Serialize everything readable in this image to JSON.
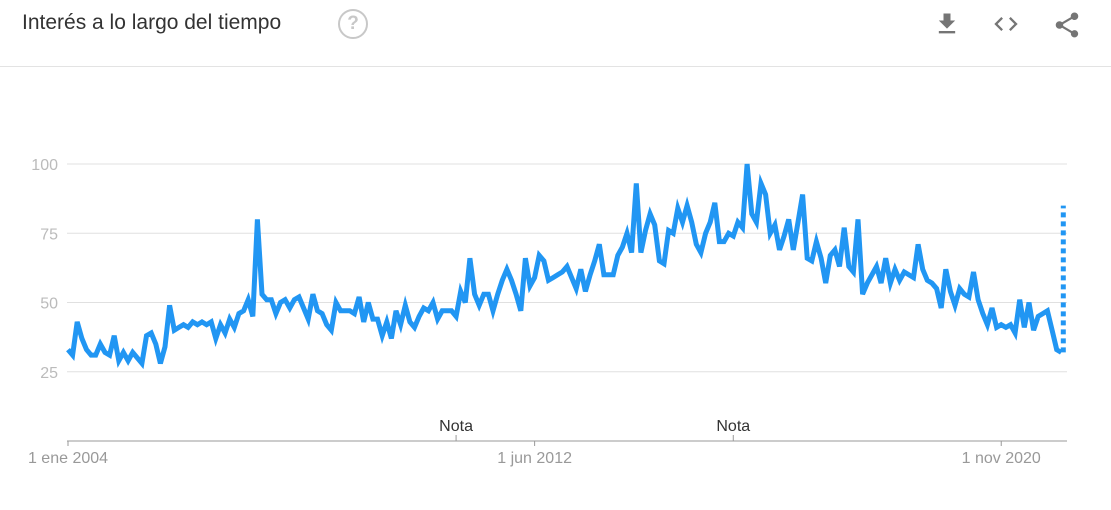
{
  "header": {
    "title": "Interés a lo largo del tiempo",
    "help_symbol": "?",
    "icons": [
      "download-icon",
      "embed-code-icon",
      "share-icon"
    ]
  },
  "colors": {
    "line": "#2196f3",
    "grid": "#e0e0e0",
    "axis": "#999999",
    "tick_label": "#bbbbbb",
    "icon": "#757575"
  },
  "chart_data": {
    "type": "line",
    "title": "",
    "xlabel": "",
    "ylabel": "",
    "ylim": [
      0,
      100
    ],
    "y_ticks": [
      "25",
      "50",
      "75",
      "100"
    ],
    "grid": true,
    "x_start": "2004-01",
    "x_interval": "month",
    "x_tick_labels": [
      {
        "label": "1 ene 2004",
        "date": "2004-01"
      },
      {
        "label": "1 jun 2012",
        "date": "2012-06"
      },
      {
        "label": "1 nov 2020",
        "date": "2020-11"
      }
    ],
    "annotations": [
      {
        "label": "Nota",
        "date": "2011-01"
      },
      {
        "label": "Nota",
        "date": "2016-01"
      }
    ],
    "series": [
      {
        "values": [
          33,
          31,
          43,
          37,
          33,
          31,
          31,
          35,
          32,
          31,
          38,
          29,
          32,
          29,
          32,
          30,
          28,
          38,
          39,
          35,
          28,
          34,
          49,
          40,
          41,
          42,
          41,
          43,
          42,
          43,
          42,
          43,
          37,
          42,
          39,
          44,
          41,
          46,
          47,
          51,
          45,
          80,
          53,
          51,
          51,
          46,
          50,
          51,
          48,
          51,
          52,
          48,
          44,
          53,
          47,
          46,
          42,
          40,
          50,
          47,
          47,
          47,
          46,
          52,
          43,
          50,
          44,
          44,
          38,
          43,
          37,
          47,
          42,
          49,
          43,
          41,
          45,
          48,
          47,
          50,
          44,
          47,
          47,
          47,
          45,
          54,
          50,
          66,
          53,
          49,
          53,
          53,
          47,
          53,
          58,
          62,
          58,
          53,
          47,
          66,
          56,
          59,
          67,
          65,
          58,
          59,
          60,
          61,
          63,
          59,
          55,
          62,
          54,
          60,
          65,
          71,
          60,
          60,
          60,
          67,
          70,
          75,
          68,
          93,
          68,
          76,
          82,
          78,
          65,
          64,
          76,
          75,
          84,
          79,
          85,
          79,
          71,
          68,
          75,
          79,
          86,
          72,
          72,
          75,
          74,
          79,
          77,
          100,
          82,
          79,
          93,
          89,
          75,
          78,
          69,
          74,
          80,
          69,
          79,
          89,
          66,
          65,
          72,
          66,
          57,
          67,
          69,
          63,
          77,
          63,
          61,
          80,
          53,
          57,
          60,
          63,
          57,
          66,
          57,
          62,
          58,
          61,
          60,
          59,
          71,
          62,
          58,
          57,
          55,
          48,
          62,
          54,
          49,
          55,
          53,
          52,
          61,
          51,
          46,
          42,
          48,
          41,
          42,
          41,
          42,
          39,
          51,
          41,
          50,
          40,
          45,
          46,
          47,
          40,
          33,
          32
        ],
        "partial_last_value": 85
      }
    ]
  }
}
